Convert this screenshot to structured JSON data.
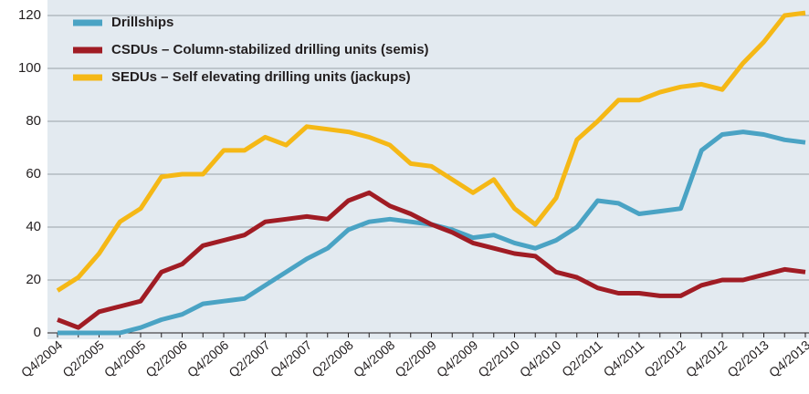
{
  "chart_data": {
    "type": "line",
    "categories": [
      "Q4/2004",
      null,
      "Q2/2005",
      null,
      "Q4/2005",
      null,
      "Q2/2006",
      null,
      "Q4/2006",
      null,
      "Q2/2007",
      null,
      "Q4/2007",
      null,
      "Q2/2008",
      null,
      "Q4/2008",
      null,
      "Q2/2009",
      null,
      "Q4/2009",
      null,
      "Q2/2010",
      null,
      "Q4/2010",
      null,
      "Q2/2011",
      null,
      "Q4/2011",
      null,
      "Q2/2012",
      null,
      "Q4/2012",
      null,
      "Q2/2013",
      null,
      "Q4/2013"
    ],
    "series": [
      {
        "name": "Drillships",
        "color": "#4aa3c4",
        "values": [
          0,
          0,
          0,
          0,
          2,
          5,
          7,
          11,
          12,
          13,
          18,
          23,
          28,
          32,
          39,
          42,
          43,
          42,
          41,
          39,
          36,
          37,
          34,
          32,
          35,
          40,
          50,
          49,
          45,
          46,
          47,
          69,
          75,
          76,
          75,
          73,
          72
        ]
      },
      {
        "name": "CSDUs – Column-stabilized drilling units (semis)",
        "color": "#a01c24",
        "values": [
          5,
          2,
          8,
          10,
          12,
          23,
          26,
          33,
          35,
          37,
          42,
          43,
          44,
          43,
          50,
          53,
          48,
          45,
          41,
          38,
          34,
          32,
          30,
          29,
          23,
          21,
          17,
          15,
          15,
          14,
          14,
          18,
          20,
          20,
          22,
          24,
          23
        ]
      },
      {
        "name": "SEDUs – Self elevating drilling units (jackups)",
        "color": "#f5b816",
        "values": [
          16,
          21,
          30,
          42,
          47,
          59,
          60,
          60,
          69,
          69,
          74,
          71,
          78,
          77,
          76,
          74,
          71,
          64,
          63,
          58,
          53,
          58,
          47,
          41,
          51,
          73,
          80,
          88,
          88,
          91,
          93,
          94,
          92,
          102,
          110,
          120,
          121
        ]
      }
    ],
    "ylim": [
      0,
      120
    ],
    "yticks": [
      0,
      20,
      40,
      60,
      80,
      100,
      120
    ],
    "grid": true,
    "legend": "upper left"
  }
}
